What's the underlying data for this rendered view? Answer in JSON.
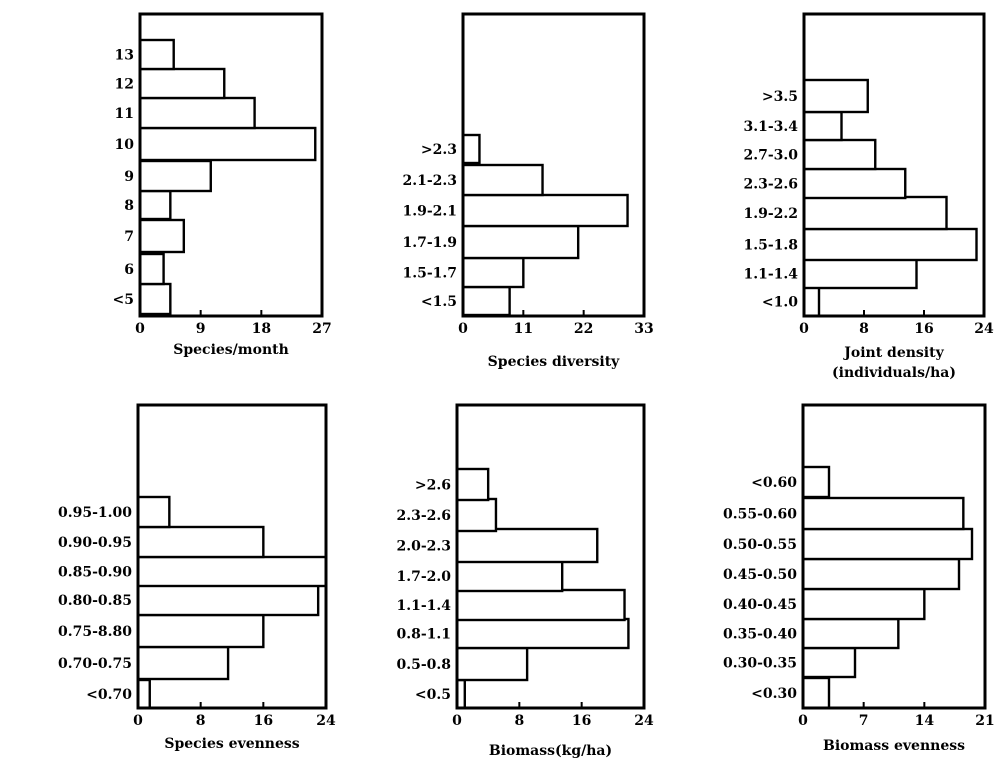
{
  "chart_data": [
    {
      "type": "bar",
      "orientation": "horizontal",
      "categories": [
        "<5",
        "6",
        "7",
        "8",
        "9",
        "10",
        "11",
        "12",
        "13"
      ],
      "values": [
        4.5,
        3.5,
        6.5,
        4.5,
        10.5,
        26,
        17,
        12.5,
        5
      ],
      "xticks": [
        "0",
        "9",
        "18",
        "27"
      ],
      "xlim": [
        0,
        27
      ],
      "xlabel": [
        "Species/month"
      ]
    },
    {
      "type": "bar",
      "orientation": "horizontal",
      "categories": [
        "<1.5",
        "1.5-1.7",
        "1.7-1.9",
        "1.9-2.1",
        "2.1-2.3",
        ">2.3"
      ],
      "values": [
        8.5,
        11,
        21,
        30,
        14.5,
        3
      ],
      "xticks": [
        "0",
        "11",
        "22",
        "33"
      ],
      "xlim": [
        0,
        33
      ],
      "xlabel": [
        "Species diversity"
      ]
    },
    {
      "type": "bar",
      "orientation": "horizontal",
      "categories": [
        "<1.0",
        "1.1-1.4",
        "1.5-1.8",
        "1.9-2.2",
        "2.3-2.6",
        "2.7-3.0",
        "3.1-3.4",
        ">3.5"
      ],
      "values": [
        2,
        15,
        23,
        19,
        13.5,
        9.5,
        5,
        8.5
      ],
      "xticks": [
        "0",
        "8",
        "16",
        "24"
      ],
      "xlim": [
        0,
        24
      ],
      "xlabel": [
        "Joint density",
        "(individuals/ha)"
      ]
    },
    {
      "type": "bar",
      "orientation": "horizontal",
      "categories": [
        "<0.70",
        "0.70-0.75",
        "0.75-8.80",
        "0.80-0.85",
        "0.85-0.90",
        "0.90-0.95",
        "0.95-1.00"
      ],
      "values": [
        1.5,
        11.5,
        16,
        23,
        24,
        16,
        4
      ],
      "xticks": [
        "0",
        "8",
        "16",
        "24"
      ],
      "xlim": [
        0,
        24
      ],
      "xlabel": [
        "Species evenness"
      ]
    },
    {
      "type": "bar",
      "orientation": "horizontal",
      "categories": [
        "<0.5",
        "0.5-0.8",
        "0.8-1.1",
        "1.1-1.4",
        "1.7-2.0",
        "2.0-2.3",
        "2.3-2.6",
        ">2.6"
      ],
      "values": [
        1,
        9,
        22,
        21.5,
        13.5,
        18,
        5,
        4
      ],
      "xticks": [
        "0",
        "8",
        "16",
        "24"
      ],
      "xlim": [
        0,
        24
      ],
      "xlabel": [
        "Biomass(kg/ha)"
      ]
    },
    {
      "type": "bar",
      "orientation": "horizontal",
      "categories": [
        "<0.30",
        "0.30-0.35",
        "0.35-0.40",
        "0.40-0.45",
        "0.45-0.50",
        "0.50-0.55",
        "0.55-0.60",
        "<0.60"
      ],
      "values": [
        3,
        6,
        11,
        14,
        18,
        19.5,
        18.5,
        3
      ],
      "xticks": [
        "0",
        "7",
        "14",
        "21"
      ],
      "xlim": [
        0,
        21
      ],
      "xlabel": [
        "Biomass evenness"
      ]
    }
  ]
}
